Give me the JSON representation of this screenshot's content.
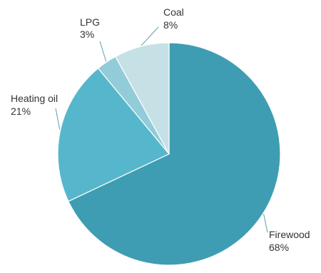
{
  "chart_data": {
    "type": "pie",
    "title": "",
    "start_angle_deg": 0,
    "direction": "clockwise",
    "slices": [
      {
        "name": "Firewood",
        "value": 68,
        "value_label": "68%",
        "color": "#3e9db2"
      },
      {
        "name": "Heating oil",
        "value": 21,
        "value_label": "21%",
        "color": "#56b7cc"
      },
      {
        "name": "LPG",
        "value": 3,
        "value_label": "3%",
        "color": "#93ccd9"
      },
      {
        "name": "Coal",
        "value": 8,
        "value_label": "8%",
        "color": "#c6e1e6"
      }
    ]
  }
}
